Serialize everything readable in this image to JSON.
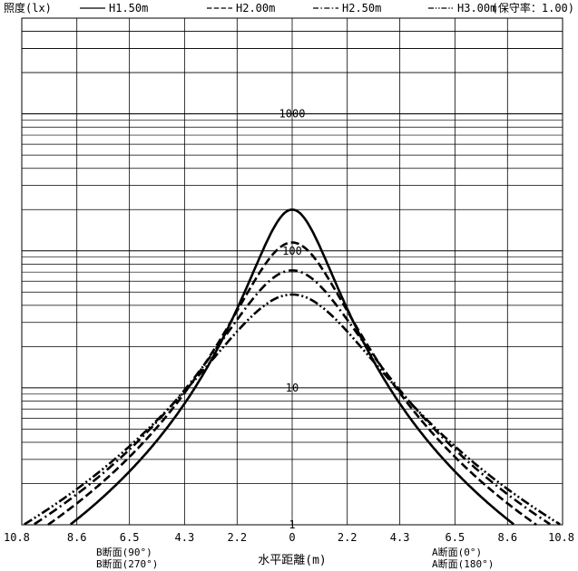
{
  "chart_data": {
    "type": "line",
    "title": "",
    "ylabel": "照度(lx)",
    "xlabel": "水平距離(m)",
    "maintenance_factor": "(保守率：1.00)",
    "yscale": "log",
    "ylim": [
      1,
      5000
    ],
    "xlim": [
      -10.8,
      10.8
    ],
    "x_tick_labels": [
      "10.8",
      "8.6",
      "6.5",
      "4.3",
      "2.2",
      "0",
      "2.2",
      "4.3",
      "6.5",
      "8.6",
      "10.8"
    ],
    "y_tick_labels": [
      "1000",
      "100",
      "10",
      "1"
    ],
    "y_tick_values": [
      1000,
      100,
      10,
      1
    ],
    "grid": true,
    "legend_position": "top",
    "left_axis_caption": [
      "B断面(90°)",
      "B断面(270°)"
    ],
    "right_axis_caption": [
      "A断面(0°)",
      "A断面(180°)"
    ],
    "series": [
      {
        "name": "H1.50m",
        "style": "solid",
        "peak": 200,
        "width": 1.54
      },
      {
        "name": "H2.00m",
        "style": "dashed",
        "peak": 115,
        "width": 2.05
      },
      {
        "name": "H2.50m",
        "style": "dashdot",
        "peak": 72,
        "width": 2.56
      },
      {
        "name": "H3.00m",
        "style": "dashdotdot",
        "peak": 48,
        "width": 3.07
      }
    ]
  }
}
